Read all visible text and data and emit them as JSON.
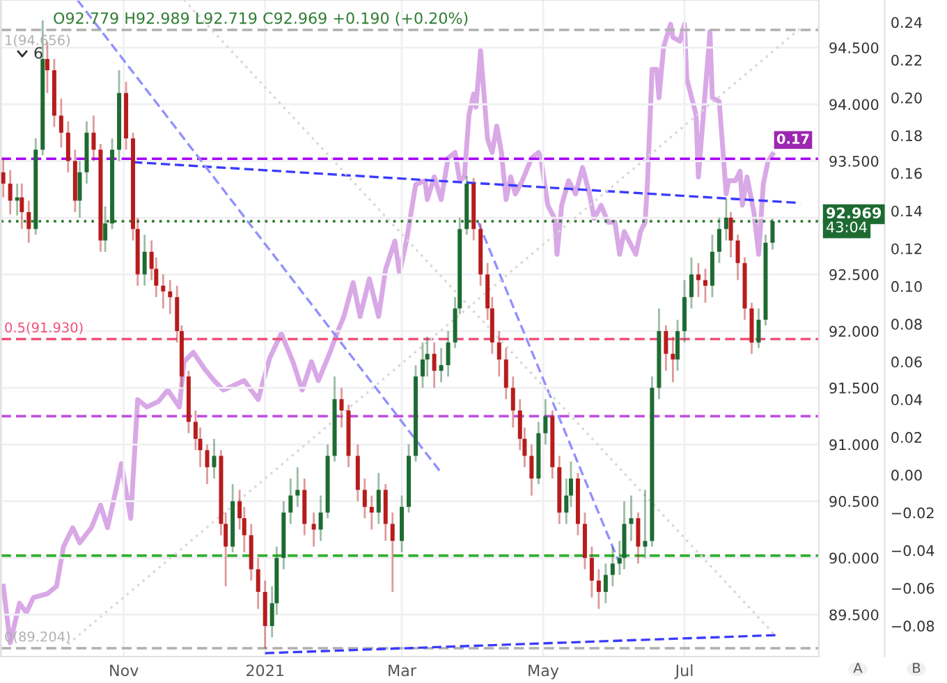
{
  "chart_data": {
    "type": "candlestick",
    "x": [
      "2020-09-10",
      "2020-09-13",
      "2020-09-16",
      "2020-09-18",
      "2020-09-21",
      "2020-09-24",
      "2020-09-27",
      "2020-09-29",
      "2020-10-02",
      "2020-10-05",
      "2020-10-08",
      "2020-10-11",
      "2020-10-13",
      "2020-10-16",
      "2020-10-19",
      "2020-10-22",
      "2020-10-24",
      "2020-10-27",
      "2020-10-30",
      "2020-11-02",
      "2020-11-05",
      "2020-11-07",
      "2020-11-10",
      "2020-11-13",
      "2020-11-15",
      "2020-11-18",
      "2020-11-21",
      "2020-11-24",
      "2020-11-26",
      "2020-11-29",
      "2020-12-02",
      "2020-12-04",
      "2020-12-07",
      "2020-12-10",
      "2020-12-13",
      "2020-12-15",
      "2020-12-18",
      "2020-12-21",
      "2020-12-23",
      "2020-12-26",
      "2020-12-29",
      "2021-01-01",
      "2021-01-04",
      "2021-01-06",
      "2021-01-09",
      "2021-01-12",
      "2021-01-15",
      "2021-01-18",
      "2021-01-22",
      "2021-01-25",
      "2021-01-28",
      "2021-01-31",
      "2021-02-03",
      "2021-02-06",
      "2021-02-10",
      "2021-02-13",
      "2021-02-16",
      "2021-02-19",
      "2021-02-22",
      "2021-02-25",
      "2021-03-01",
      "2021-03-04",
      "2021-03-07",
      "2021-03-10",
      "2021-03-12",
      "2021-03-15",
      "2021-03-18",
      "2021-03-21",
      "2021-03-24",
      "2021-03-26",
      "2021-03-29",
      "2021-04-01",
      "2021-04-04",
      "2021-04-07",
      "2021-04-09",
      "2021-04-12",
      "2021-04-15",
      "2021-04-18",
      "2021-04-21",
      "2021-04-23",
      "2021-04-26",
      "2021-04-29",
      "2021-05-02",
      "2021-05-05",
      "2021-05-08",
      "2021-05-11",
      "2021-05-13",
      "2021-05-16",
      "2021-05-19",
      "2021-05-22",
      "2021-05-25",
      "2021-05-28",
      "2021-05-31",
      "2021-06-03",
      "2021-06-05",
      "2021-06-08",
      "2021-06-11",
      "2021-06-14",
      "2021-06-17",
      "2021-06-20",
      "2021-06-23",
      "2021-06-26",
      "2021-06-28",
      "2021-07-01",
      "2021-07-04",
      "2021-07-07",
      "2021-07-10",
      "2021-07-13",
      "2021-07-16",
      "2021-07-19",
      "2021-07-21",
      "2021-07-24",
      "2021-07-27",
      "2021-07-30",
      "2021-08-02",
      "2021-08-05",
      "2021-08-08"
    ],
    "ohlc": [
      [
        93.4,
        93.52,
        93.18,
        93.3
      ],
      [
        93.3,
        93.42,
        93.03,
        93.15
      ],
      [
        93.15,
        93.3,
        93.02,
        93.18
      ],
      [
        93.18,
        93.3,
        92.9,
        93.05
      ],
      [
        93.05,
        93.15,
        92.78,
        92.9
      ],
      [
        92.9,
        93.7,
        92.85,
        93.6
      ],
      [
        93.6,
        94.74,
        93.55,
        94.4
      ],
      [
        94.4,
        94.55,
        94.1,
        94.3
      ],
      [
        94.3,
        94.4,
        93.8,
        93.9
      ],
      [
        93.9,
        94.05,
        93.62,
        93.75
      ],
      [
        93.75,
        93.85,
        93.4,
        93.5
      ],
      [
        93.5,
        93.6,
        93.05,
        93.15
      ],
      [
        93.15,
        93.5,
        93.0,
        93.4
      ],
      [
        93.4,
        93.85,
        93.3,
        93.75
      ],
      [
        93.75,
        93.9,
        93.5,
        93.6
      ],
      [
        93.6,
        93.65,
        92.7,
        92.8
      ],
      [
        92.8,
        93.1,
        92.7,
        92.95
      ],
      [
        92.95,
        93.7,
        92.9,
        93.6
      ],
      [
        93.6,
        94.3,
        93.5,
        94.1
      ],
      [
        94.1,
        94.2,
        93.6,
        93.7
      ],
      [
        93.7,
        93.75,
        92.8,
        92.9
      ],
      [
        92.9,
        93.0,
        92.4,
        92.5
      ],
      [
        92.5,
        92.85,
        92.4,
        92.7
      ],
      [
        92.7,
        92.8,
        92.45,
        92.55
      ],
      [
        92.55,
        92.65,
        92.3,
        92.4
      ],
      [
        92.4,
        92.5,
        92.2,
        92.35
      ],
      [
        92.35,
        92.45,
        92.15,
        92.3
      ],
      [
        92.3,
        92.4,
        91.9,
        92.0
      ],
      [
        92.0,
        92.05,
        91.5,
        91.6
      ],
      [
        91.6,
        91.65,
        91.1,
        91.2
      ],
      [
        91.2,
        91.3,
        90.95,
        91.05
      ],
      [
        91.05,
        91.15,
        90.8,
        90.95
      ],
      [
        90.95,
        91.0,
        90.65,
        90.8
      ],
      [
        90.8,
        91.05,
        90.7,
        90.9
      ],
      [
        90.9,
        90.95,
        90.2,
        90.3
      ],
      [
        90.3,
        90.4,
        89.75,
        90.1
      ],
      [
        90.1,
        90.65,
        90.05,
        90.5
      ],
      [
        90.5,
        90.6,
        90.25,
        90.35
      ],
      [
        90.35,
        90.45,
        90.05,
        90.2
      ],
      [
        90.2,
        90.3,
        89.8,
        89.9
      ],
      [
        89.9,
        90.0,
        89.55,
        89.7
      ],
      [
        89.7,
        89.8,
        89.2,
        89.4
      ],
      [
        89.4,
        89.75,
        89.3,
        89.6
      ],
      [
        89.6,
        90.1,
        89.5,
        90.0
      ],
      [
        90.0,
        90.5,
        89.9,
        90.4
      ],
      [
        90.4,
        90.7,
        90.3,
        90.55
      ],
      [
        90.55,
        90.8,
        90.45,
        90.6
      ],
      [
        90.6,
        90.7,
        90.2,
        90.3
      ],
      [
        90.3,
        90.4,
        90.1,
        90.25
      ],
      [
        90.25,
        90.55,
        90.15,
        90.4
      ],
      [
        90.4,
        91.0,
        90.35,
        90.9
      ],
      [
        90.9,
        91.6,
        90.85,
        91.4
      ],
      [
        91.4,
        91.5,
        91.15,
        91.3
      ],
      [
        91.3,
        91.35,
        90.8,
        90.9
      ],
      [
        90.9,
        91.0,
        90.5,
        90.6
      ],
      [
        90.6,
        90.7,
        90.35,
        90.45
      ],
      [
        90.45,
        90.55,
        90.25,
        90.4
      ],
      [
        90.4,
        90.75,
        90.3,
        90.6
      ],
      [
        90.6,
        90.65,
        90.15,
        90.3
      ],
      [
        90.3,
        90.4,
        89.7,
        90.15
      ],
      [
        90.15,
        90.55,
        90.05,
        90.45
      ],
      [
        90.45,
        91.0,
        90.4,
        90.9
      ],
      [
        90.9,
        91.7,
        90.85,
        91.6
      ],
      [
        91.6,
        91.9,
        91.5,
        91.75
      ],
      [
        91.75,
        91.95,
        91.6,
        91.8
      ],
      [
        91.8,
        91.9,
        91.5,
        91.65
      ],
      [
        91.65,
        91.85,
        91.55,
        91.7
      ],
      [
        91.7,
        92.0,
        91.6,
        91.9
      ],
      [
        91.9,
        92.3,
        91.85,
        92.2
      ],
      [
        92.2,
        93.0,
        92.15,
        92.9
      ],
      [
        92.9,
        93.37,
        92.85,
        93.3
      ],
      [
        93.3,
        93.35,
        92.8,
        92.9
      ],
      [
        92.9,
        92.95,
        92.4,
        92.5
      ],
      [
        92.5,
        92.6,
        92.1,
        92.2
      ],
      [
        92.2,
        92.3,
        91.8,
        91.9
      ],
      [
        91.9,
        92.0,
        91.6,
        91.75
      ],
      [
        91.75,
        91.85,
        91.4,
        91.5
      ],
      [
        91.5,
        91.6,
        91.15,
        91.3
      ],
      [
        91.3,
        91.4,
        90.95,
        91.05
      ],
      [
        91.05,
        91.15,
        90.8,
        90.9
      ],
      [
        90.9,
        91.0,
        90.55,
        90.7
      ],
      [
        90.7,
        91.2,
        90.65,
        91.1
      ],
      [
        91.1,
        91.4,
        91.0,
        91.25
      ],
      [
        91.25,
        91.3,
        90.7,
        90.8
      ],
      [
        90.8,
        90.9,
        90.3,
        90.4
      ],
      [
        90.4,
        90.7,
        90.3,
        90.55
      ],
      [
        90.55,
        90.85,
        90.45,
        90.7
      ],
      [
        90.7,
        90.75,
        90.2,
        90.3
      ],
      [
        90.3,
        90.4,
        89.9,
        90.0
      ],
      [
        90.0,
        90.1,
        89.65,
        89.8
      ],
      [
        89.8,
        89.9,
        89.55,
        89.7
      ],
      [
        89.7,
        89.95,
        89.6,
        89.85
      ],
      [
        89.85,
        90.1,
        89.75,
        89.95
      ],
      [
        89.95,
        90.15,
        89.85,
        90.0
      ],
      [
        90.0,
        90.5,
        89.9,
        90.3
      ],
      [
        90.3,
        90.55,
        90.15,
        90.35
      ],
      [
        90.35,
        90.4,
        89.95,
        90.1
      ],
      [
        90.1,
        90.6,
        90.0,
        90.15
      ],
      [
        90.15,
        91.6,
        90.1,
        91.5
      ],
      [
        91.5,
        92.2,
        91.4,
        92.0
      ],
      [
        92.0,
        92.05,
        91.65,
        91.8
      ],
      [
        91.8,
        91.95,
        91.55,
        91.75
      ],
      [
        91.75,
        92.1,
        91.65,
        92.0
      ],
      [
        92.0,
        92.45,
        91.9,
        92.3
      ],
      [
        92.3,
        92.65,
        92.2,
        92.5
      ],
      [
        92.5,
        92.6,
        92.3,
        92.45
      ],
      [
        92.45,
        92.55,
        92.25,
        92.4
      ],
      [
        92.4,
        92.85,
        92.3,
        92.7
      ],
      [
        92.7,
        93.0,
        92.6,
        92.9
      ],
      [
        92.9,
        93.17,
        92.8,
        93.0
      ],
      [
        93.0,
        93.05,
        92.65,
        92.8
      ],
      [
        92.8,
        92.85,
        92.45,
        92.6
      ],
      [
        92.6,
        92.65,
        92.1,
        92.2
      ],
      [
        92.2,
        92.25,
        91.8,
        91.9
      ],
      [
        91.9,
        92.2,
        91.85,
        92.1
      ],
      [
        92.1,
        92.85,
        92.05,
        92.78
      ],
      [
        92.779,
        92.989,
        92.719,
        92.969
      ]
    ],
    "colors": [
      "#b71c1c",
      "#b71c1c",
      "#1e6b32",
      "#b71c1c",
      "#b71c1c",
      "#1e6b32",
      "#1e6b32",
      "#b71c1c",
      "#b71c1c",
      "#b71c1c",
      "#b71c1c",
      "#b71c1c",
      "#1e6b32",
      "#1e6b32",
      "#b71c1c",
      "#b71c1c",
      "#1e6b32",
      "#1e6b32",
      "#1e6b32",
      "#b71c1c",
      "#b71c1c",
      "#b71c1c",
      "#1e6b32",
      "#b71c1c",
      "#b71c1c",
      "#b71c1c",
      "#b71c1c",
      "#b71c1c",
      "#b71c1c",
      "#b71c1c",
      "#b71c1c",
      "#b71c1c",
      "#b71c1c",
      "#1e6b32",
      "#b71c1c",
      "#b71c1c",
      "#1e6b32",
      "#b71c1c",
      "#b71c1c",
      "#b71c1c",
      "#b71c1c",
      "#b71c1c",
      "#1e6b32",
      "#1e6b32",
      "#1e6b32",
      "#1e6b32",
      "#1e6b32",
      "#b71c1c",
      "#b71c1c",
      "#1e6b32",
      "#1e6b32",
      "#1e6b32",
      "#b71c1c",
      "#b71c1c",
      "#b71c1c",
      "#b71c1c",
      "#b71c1c",
      "#1e6b32",
      "#b71c1c",
      "#b71c1c",
      "#1e6b32",
      "#1e6b32",
      "#1e6b32",
      "#1e6b32",
      "#1e6b32",
      "#b71c1c",
      "#1e6b32",
      "#1e6b32",
      "#1e6b32",
      "#1e6b32",
      "#1e6b32",
      "#b71c1c",
      "#b71c1c",
      "#b71c1c",
      "#b71c1c",
      "#b71c1c",
      "#b71c1c",
      "#b71c1c",
      "#b71c1c",
      "#b71c1c",
      "#b71c1c",
      "#1e6b32",
      "#1e6b32",
      "#b71c1c",
      "#b71c1c",
      "#1e6b32",
      "#1e6b32",
      "#b71c1c",
      "#b71c1c",
      "#b71c1c",
      "#b71c1c",
      "#1e6b32",
      "#1e6b32",
      "#1e6b32",
      "#1e6b32",
      "#1e6b32",
      "#b71c1c",
      "#1e6b32",
      "#1e6b32",
      "#1e6b32",
      "#b71c1c",
      "#b71c1c",
      "#1e6b32",
      "#1e6b32",
      "#1e6b32",
      "#b71c1c",
      "#b71c1c",
      "#1e6b32",
      "#1e6b32",
      "#1e6b32",
      "#b71c1c",
      "#b71c1c",
      "#b71c1c",
      "#b71c1c",
      "#1e6b32",
      "#1e6b32",
      "#1e6b32"
    ],
    "value_labels": [
      null,
      null,
      null,
      null,
      null,
      null,
      null,
      null,
      null,
      null,
      null,
      null,
      null,
      null,
      null,
      null,
      null,
      null,
      null,
      null,
      null,
      null,
      null,
      null,
      null,
      null,
      null,
      null,
      null,
      null,
      null,
      null,
      null,
      null,
      null,
      null,
      null,
      null,
      null,
      null,
      null,
      null,
      null,
      null,
      null,
      null,
      null,
      null,
      null,
      null,
      null,
      null,
      null,
      null,
      null,
      null,
      null,
      null,
      null,
      null,
      null,
      null,
      null,
      null,
      null,
      null,
      null,
      null,
      null,
      null,
      null,
      null,
      null,
      null,
      null,
      null,
      null,
      null,
      null,
      null,
      null,
      null,
      null,
      null,
      null,
      null,
      null,
      null,
      null,
      null,
      null,
      null,
      null,
      null,
      null,
      null,
      null,
      null,
      null,
      null,
      null,
      null,
      null,
      null,
      null,
      null,
      null,
      null,
      null,
      null,
      null,
      null,
      null,
      null,
      null,
      null,
      "92.969"
    ],
    "series": [
      {
        "type": "line",
        "axis": "y2",
        "color": "#d9a8e6",
        "x": [
          "2020-09-10",
          "2020-09-13",
          "2020-09-17",
          "2020-09-20",
          "2020-09-23",
          "2020-09-29",
          "2020-10-03",
          "2020-10-06",
          "2020-10-10",
          "2020-10-13",
          "2020-10-18",
          "2020-10-22",
          "2020-10-25",
          "2020-10-29",
          "2020-10-31",
          "2020-11-04",
          "2020-11-07",
          "2020-11-11",
          "2020-11-16",
          "2020-11-20",
          "2020-11-25",
          "2020-11-27",
          "2020-12-01",
          "2020-12-06",
          "2020-12-10",
          "2020-12-14",
          "2020-12-23",
          "2020-12-29",
          "2021-01-03",
          "2021-01-08",
          "2021-01-13",
          "2021-01-17",
          "2021-01-21",
          "2021-01-24",
          "2021-01-29",
          "2021-02-01",
          "2021-02-04",
          "2021-02-08",
          "2021-02-11",
          "2021-02-15",
          "2021-02-19",
          "2021-02-22",
          "2021-02-26",
          "2021-02-28",
          "2021-03-03",
          "2021-03-07",
          "2021-03-11",
          "2021-03-12",
          "2021-03-15",
          "2021-03-18",
          "2021-03-21",
          "2021-03-24",
          "2021-03-26",
          "2021-03-28",
          "2021-03-30",
          "2021-04-01",
          "2021-04-02",
          "2021-04-04",
          "2021-04-07",
          "2021-04-09",
          "2021-04-11",
          "2021-04-13",
          "2021-04-15",
          "2021-04-17",
          "2021-04-19",
          "2021-04-22",
          "2021-04-26",
          "2021-04-29",
          "2021-04-30",
          "2021-05-03",
          "2021-05-06",
          "2021-05-07",
          "2021-05-09",
          "2021-05-12",
          "2021-05-15",
          "2021-05-18",
          "2021-05-21",
          "2021-05-23",
          "2021-05-26",
          "2021-05-29",
          "2021-06-01",
          "2021-06-03",
          "2021-06-05",
          "2021-06-10",
          "2021-06-12",
          "2021-06-14",
          "2021-06-15",
          "2021-06-17",
          "2021-06-19",
          "2021-06-20",
          "2021-06-22",
          "2021-06-25",
          "2021-06-26",
          "2021-06-29",
          "2021-07-01",
          "2021-07-02",
          "2021-07-06",
          "2021-07-07",
          "2021-07-12",
          "2021-07-13",
          "2021-07-16",
          "2021-07-19",
          "2021-07-20",
          "2021-07-23",
          "2021-07-25",
          "2021-07-26",
          "2021-07-28",
          "2021-07-31",
          "2021-08-02",
          "2021-08-04",
          "2021-08-06",
          "2021-08-08"
        ],
        "values": [
          -0.059,
          -0.089,
          -0.068,
          -0.073,
          -0.065,
          -0.063,
          -0.059,
          -0.038,
          -0.028,
          -0.036,
          -0.028,
          -0.016,
          -0.028,
          -0.006,
          0.006,
          -0.023,
          0.04,
          0.036,
          0.039,
          0.045,
          0.036,
          0.06,
          0.065,
          0.056,
          0.05,
          0.045,
          0.05,
          0.04,
          0.062,
          0.075,
          0.06,
          0.045,
          0.06,
          0.05,
          0.065,
          0.075,
          0.084,
          0.102,
          0.084,
          0.104,
          0.084,
          0.109,
          0.124,
          0.107,
          0.124,
          0.154,
          0.156,
          0.146,
          0.158,
          0.146,
          0.168,
          0.171,
          0.156,
          0.158,
          0.191,
          0.202,
          0.195,
          0.225,
          0.178,
          0.171,
          0.185,
          0.171,
          0.146,
          0.158,
          0.149,
          0.156,
          0.168,
          0.171,
          0.168,
          0.143,
          0.136,
          0.117,
          0.143,
          0.156,
          0.149,
          0.163,
          0.149,
          0.136,
          0.143,
          0.134,
          0.134,
          0.117,
          0.129,
          0.117,
          0.129,
          0.134,
          0.154,
          0.215,
          0.215,
          0.2,
          0.227,
          0.239,
          0.232,
          0.23,
          0.239,
          0.21,
          0.191,
          0.158,
          0.235,
          0.2,
          0.198,
          0.149,
          0.156,
          0.156,
          0.161,
          0.143,
          0.158,
          0.139,
          0.117,
          0.154,
          0.166,
          0.17
        ],
        "value_labels": [
          null,
          null,
          null,
          null,
          null,
          null,
          null,
          null,
          null,
          null,
          null,
          null,
          null,
          null,
          null,
          null,
          null,
          null,
          null,
          null,
          null,
          null,
          null,
          null,
          null,
          null,
          null,
          null,
          null,
          null,
          null,
          null,
          null,
          null,
          null,
          null,
          null,
          null,
          null,
          null,
          null,
          null,
          null,
          null,
          null,
          null,
          null,
          null,
          null,
          null,
          null,
          null,
          null,
          null,
          null,
          null,
          null,
          null,
          null,
          null,
          null,
          null,
          null,
          null,
          null,
          null,
          null,
          null,
          null,
          null,
          null,
          null,
          null,
          null,
          null,
          null,
          null,
          null,
          null,
          null,
          null,
          null,
          null,
          null,
          null,
          null,
          null,
          null,
          null,
          null,
          null,
          null,
          null,
          null,
          null,
          null,
          null,
          null,
          null,
          null,
          null,
          null,
          null,
          null,
          null,
          null,
          null,
          null,
          null,
          null,
          null,
          "0.17"
        ]
      },
      {
        "type": "line",
        "color": "#3a3aff",
        "line_style": "dashed",
        "x": [
          "2020-11-05",
          "2021-08-20"
        ],
        "values": [
          93.49,
          93.13
        ]
      },
      {
        "type": "line",
        "color": "#3a3aff",
        "line_style": "dashed",
        "x": [
          "2021-01-01",
          "2021-08-11"
        ],
        "values": [
          89.16,
          89.32
        ]
      },
      {
        "type": "line",
        "color": "#9090ff",
        "line_style": "dashed",
        "x": [
          "2020-10-12",
          "2021-03-18"
        ],
        "values": [
          94.92,
          90.75
        ]
      },
      {
        "type": "line",
        "color": "#9090ff",
        "line_style": "dashed",
        "x": [
          "2021-04-03",
          "2021-06-03"
        ],
        "values": [
          92.96,
          89.95
        ]
      },
      {
        "type": "line",
        "color": "#d8d8d8",
        "line_style": "dotted",
        "x": [
          "2020-11-27",
          "2021-08-09"
        ],
        "values": [
          94.92,
          89.32
        ]
      },
      {
        "type": "line",
        "color": "#d8d8d8",
        "line_style": "dotted",
        "x": [
          "2020-10-08",
          "2021-08-20"
        ],
        "values": [
          89.24,
          94.67
        ]
      }
    ],
    "ref_lines": [
      {
        "axis": "y",
        "value": 94.656,
        "label": "1(94.656)",
        "color": "#b0b0b0",
        "line_style": "dashed"
      },
      {
        "axis": "y",
        "value": 93.52,
        "label": null,
        "color": "#aa00ff",
        "line_style": "dashed"
      },
      {
        "axis": "y",
        "value": 92.969,
        "label": null,
        "color": "#2e7d32",
        "line_style": "dotted"
      },
      {
        "axis": "y",
        "value": 91.93,
        "label": "0.5(91.930)",
        "color": "#f0507a",
        "line_style": "dashed"
      },
      {
        "axis": "y",
        "value": 91.25,
        "label": null,
        "color": "#c050e0",
        "line_style": "dashed"
      },
      {
        "axis": "y",
        "value": 90.02,
        "label": null,
        "color": "#30b030",
        "line_style": "dashed"
      },
      {
        "axis": "y",
        "value": 89.204,
        "label": "0(89.204)",
        "color": "#b0b0b0",
        "line_style": "dashed"
      }
    ],
    "annotations": [
      "O92.779 H92.989 L92.719 C92.969 +0.190 (+0.20%)",
      "6",
      "43:04",
      "A",
      "B"
    ],
    "xlim": [
      "2020-09-09",
      "2021-08-28"
    ],
    "xticks": [
      {
        "value": "2020-11-01",
        "label": "Nov"
      },
      {
        "value": "2021-01-01",
        "label": "2021"
      },
      {
        "value": "2021-03-01",
        "label": "Mar"
      },
      {
        "value": "2021-05-01",
        "label": "May"
      },
      {
        "value": "2021-07-01",
        "label": "Jul"
      }
    ],
    "ylim": [
      89.13,
      94.92
    ],
    "yticks": [
      {
        "value": 89.5,
        "label": "89.500"
      },
      {
        "value": 90,
        "label": "90.000"
      },
      {
        "value": 90.5,
        "label": "90.500"
      },
      {
        "value": 91,
        "label": "91.000"
      },
      {
        "value": 91.5,
        "label": "91.500"
      },
      {
        "value": 92,
        "label": "92.000"
      },
      {
        "value": 92.5,
        "label": "92.500"
      },
      {
        "value": 93,
        "label": null
      },
      {
        "value": 93.5,
        "label": "93.500"
      },
      {
        "value": 94,
        "label": "94.000"
      },
      {
        "value": 94.5,
        "label": "94.500"
      }
    ],
    "y2lim": [
      -0.0963,
      0.2518
    ],
    "y2ticks": [
      {
        "value": -0.08,
        "label": "−0.08"
      },
      {
        "value": -0.06,
        "label": "−0.06"
      },
      {
        "value": -0.04,
        "label": "−0.04"
      },
      {
        "value": -0.02,
        "label": "−0.02"
      },
      {
        "value": 0,
        "label": "0.00"
      },
      {
        "value": 0.02,
        "label": "0.02"
      },
      {
        "value": 0.04,
        "label": "0.04"
      },
      {
        "value": 0.06,
        "label": "0.06"
      },
      {
        "value": 0.08,
        "label": "0.08"
      },
      {
        "value": 0.1,
        "label": "0.10"
      },
      {
        "value": 0.12,
        "label": "0.12"
      },
      {
        "value": 0.14,
        "label": "0.14"
      },
      {
        "value": 0.16,
        "label": "0.16"
      },
      {
        "value": 0.18,
        "label": "0.18"
      },
      {
        "value": 0.2,
        "label": "0.20"
      },
      {
        "value": 0.22,
        "label": "0.22"
      },
      {
        "value": 0.24,
        "label": "0.24"
      }
    ],
    "grid": true,
    "legend": false
  }
}
